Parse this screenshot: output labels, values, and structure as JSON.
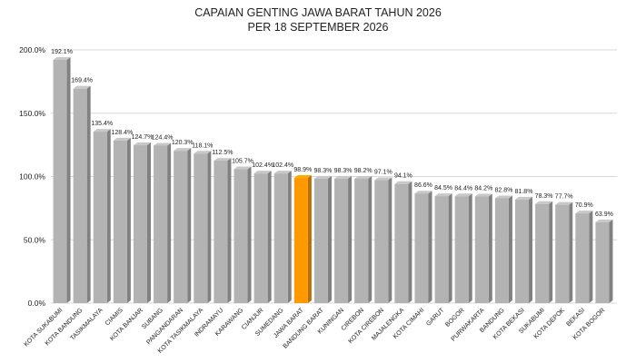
{
  "title_line1": "CAPAIAN GENTING JAWA BARAT TAHUN 2026",
  "title_line2": "PER 18 SEPTEMBER 2026",
  "colors": {
    "bar": "#b3b3b3",
    "highlight": "#ff9900",
    "grid": "#d9d9d9"
  },
  "chart_data": {
    "type": "bar",
    "title": "CAPAIAN GENTING JAWA BARAT TAHUN 2026 PER 18 SEPTEMBER 2026",
    "xlabel": "",
    "ylabel": "",
    "ylim": [
      0,
      200
    ],
    "yticks": [
      "0.0%",
      "50.0%",
      "100.0%",
      "150.0%",
      "200.0%"
    ],
    "ytick_values": [
      0,
      50,
      100,
      150,
      200
    ],
    "grid": true,
    "highlight_category": "JAWA BARAT",
    "categories": [
      "KOTA SUKABUMI",
      "KOTA BANDUNG",
      "TASIKMALAYA",
      "CIAMIS",
      "KOTA BANJAR",
      "SUBANG",
      "PANGANDARAN",
      "KOTA TASIKMALAYA",
      "INDRAMAYU",
      "KARAWANG",
      "CIANJUR",
      "SUMEDANG",
      "JAWA BARAT",
      "BANDUNG BARAT",
      "KUNINGAN",
      "CIREBON",
      "KOTA CIREBON",
      "MAJALENGKA",
      "KOTA CIMAHI",
      "GARUT",
      "BOGOR",
      "PURWAKARTA",
      "BANDUNG",
      "KOTA BEKASI",
      "SUKABUMI",
      "KOTA DEPOK",
      "BEKASI",
      "KOTA BOGOR"
    ],
    "values": [
      192.1,
      169.4,
      135.4,
      128.4,
      124.7,
      124.4,
      120.3,
      118.1,
      112.5,
      105.7,
      102.4,
      102.4,
      98.9,
      98.3,
      98.3,
      98.2,
      97.1,
      94.1,
      86.6,
      84.5,
      84.4,
      84.2,
      82.8,
      81.8,
      78.3,
      77.7,
      70.9,
      63.9
    ],
    "value_labels": [
      "192.1%",
      "169.4%",
      "135.4%",
      "128.4%",
      "124.7%",
      "124.4%",
      "120.3%",
      "118.1%",
      "112.5%",
      "105.7%",
      "102.4%",
      "102.4%",
      "98.9%",
      "98.3%",
      "98.3%",
      "98.2%",
      "97.1%",
      "94.1%",
      "86.6%",
      "84.5%",
      "84.4%",
      "84.2%",
      "82.8%",
      "81.8%",
      "78.3%",
      "77.7%",
      "70.9%",
      "63.9%"
    ]
  }
}
